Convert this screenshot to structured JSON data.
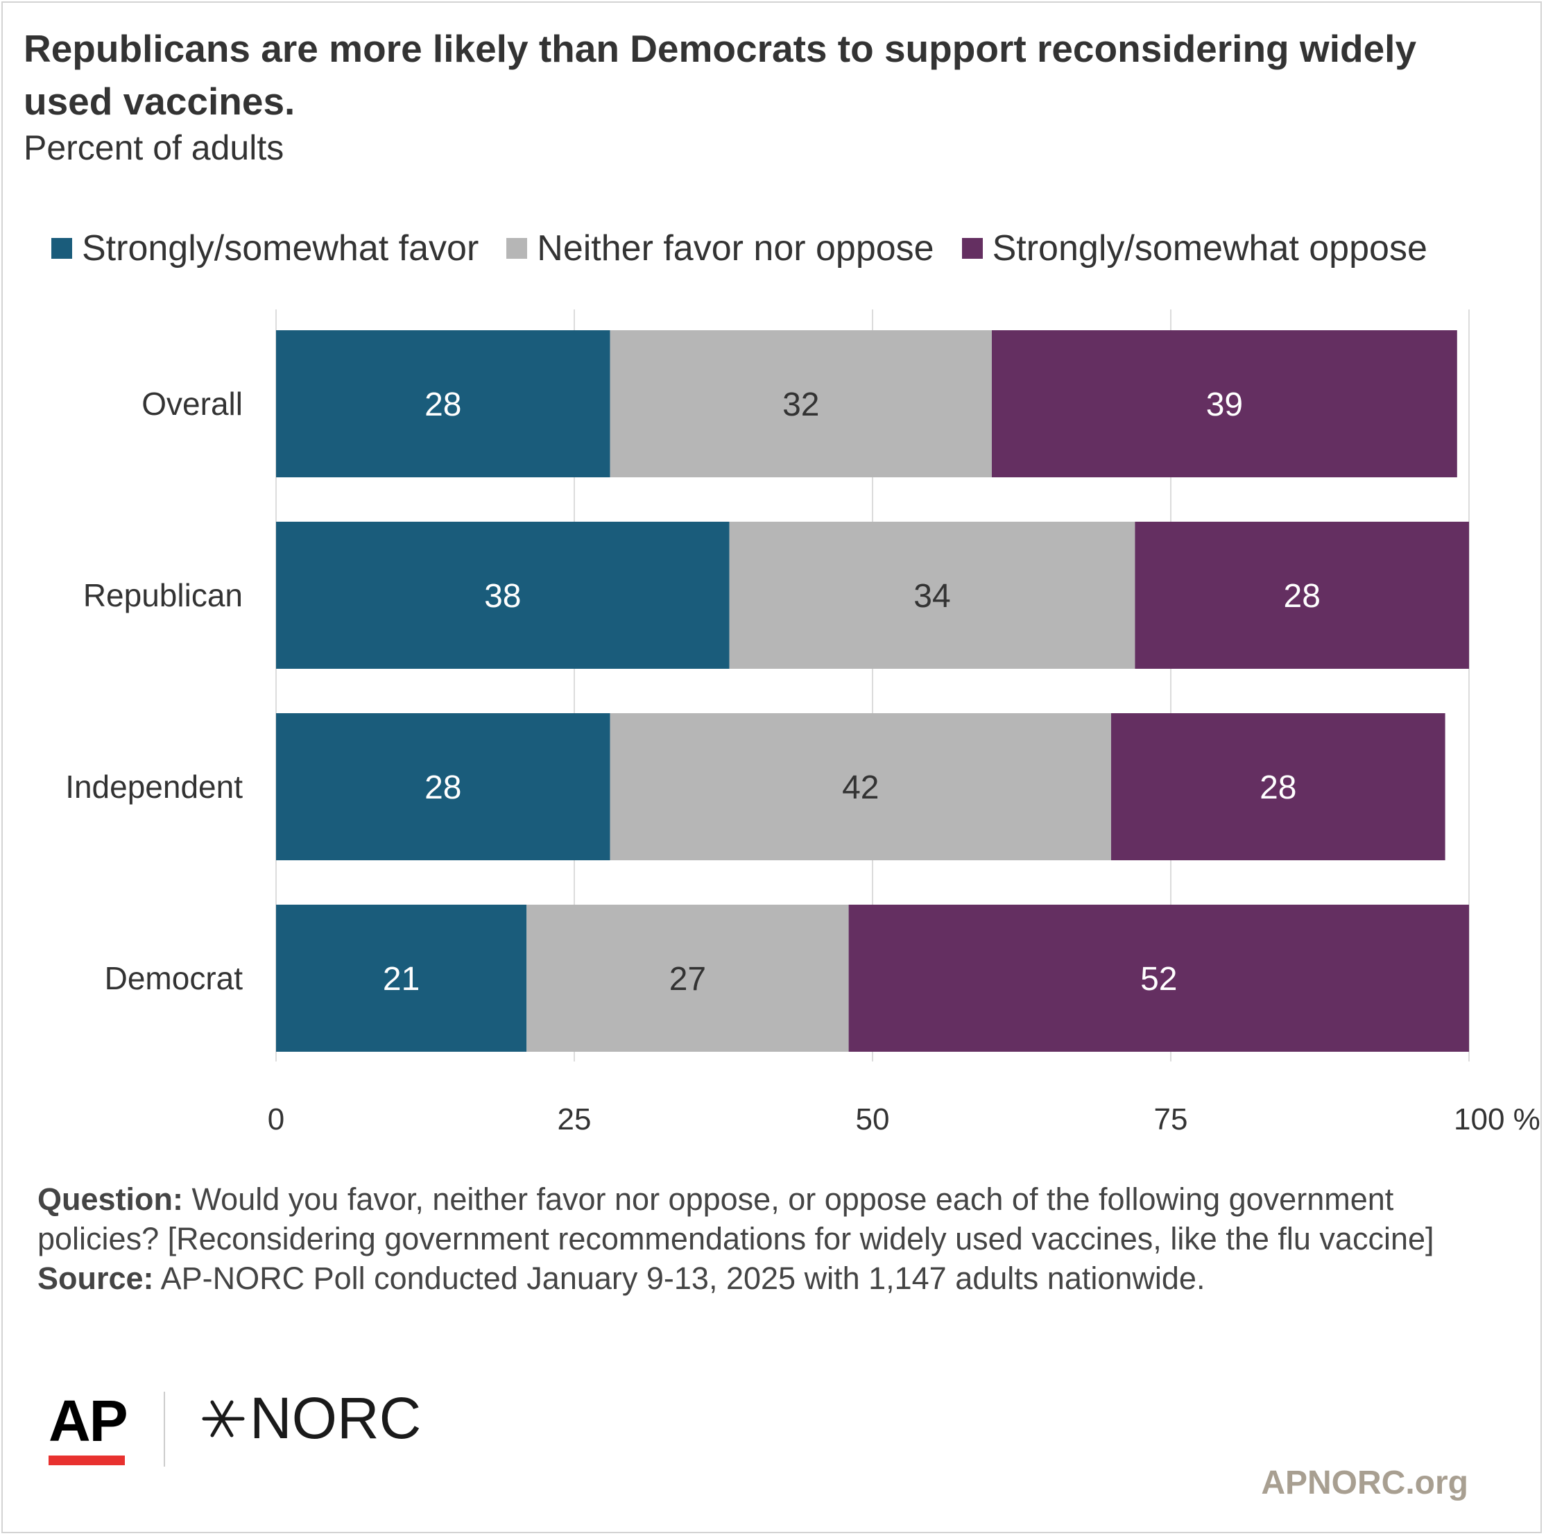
{
  "title": "Republicans are more likely than Democrats to support reconsidering widely used vaccines.",
  "subtitle": "Percent of adults",
  "legend": [
    {
      "label": "Strongly/somewhat favor",
      "color": "#1a5c7b"
    },
    {
      "label": "Neither favor nor oppose",
      "color": "#b6b6b6"
    },
    {
      "label": "Strongly/somewhat oppose",
      "color": "#642f61"
    }
  ],
  "chart_data": {
    "type": "bar",
    "orientation": "horizontal",
    "stacked": true,
    "categories": [
      "Overall",
      "Republican",
      "Independent",
      "Democrat"
    ],
    "series": [
      {
        "name": "Strongly/somewhat favor",
        "values": [
          28,
          38,
          28,
          21
        ],
        "color": "#1a5c7b",
        "label_color": "#ffffff"
      },
      {
        "name": "Neither favor nor oppose",
        "values": [
          32,
          34,
          42,
          27
        ],
        "color": "#b6b6b6",
        "label_color": "#333333"
      },
      {
        "name": "Strongly/somewhat oppose",
        "values": [
          39,
          28,
          28,
          52
        ],
        "color": "#642f61",
        "label_color": "#ffffff"
      }
    ],
    "xlim": [
      0,
      100
    ],
    "xticks": [
      0,
      25,
      50,
      75,
      100
    ],
    "xtick_labels": [
      "0",
      "25",
      "50",
      "75",
      "100 %"
    ],
    "grid": true,
    "legend_position": "top"
  },
  "notes": {
    "question_label": "Question:",
    "question_text": "Would you favor, neither favor nor oppose, or oppose each of the following government policies? [Reconsidering government recommendations for widely used vaccines, like the flu vaccine]",
    "source_label": "Source:",
    "source_text": "AP-NORC Poll conducted January 9-13, 2025 with 1,147 adults nationwide."
  },
  "logos": {
    "ap": "AP",
    "norc": "NORC",
    "site": "APNORC.org"
  }
}
